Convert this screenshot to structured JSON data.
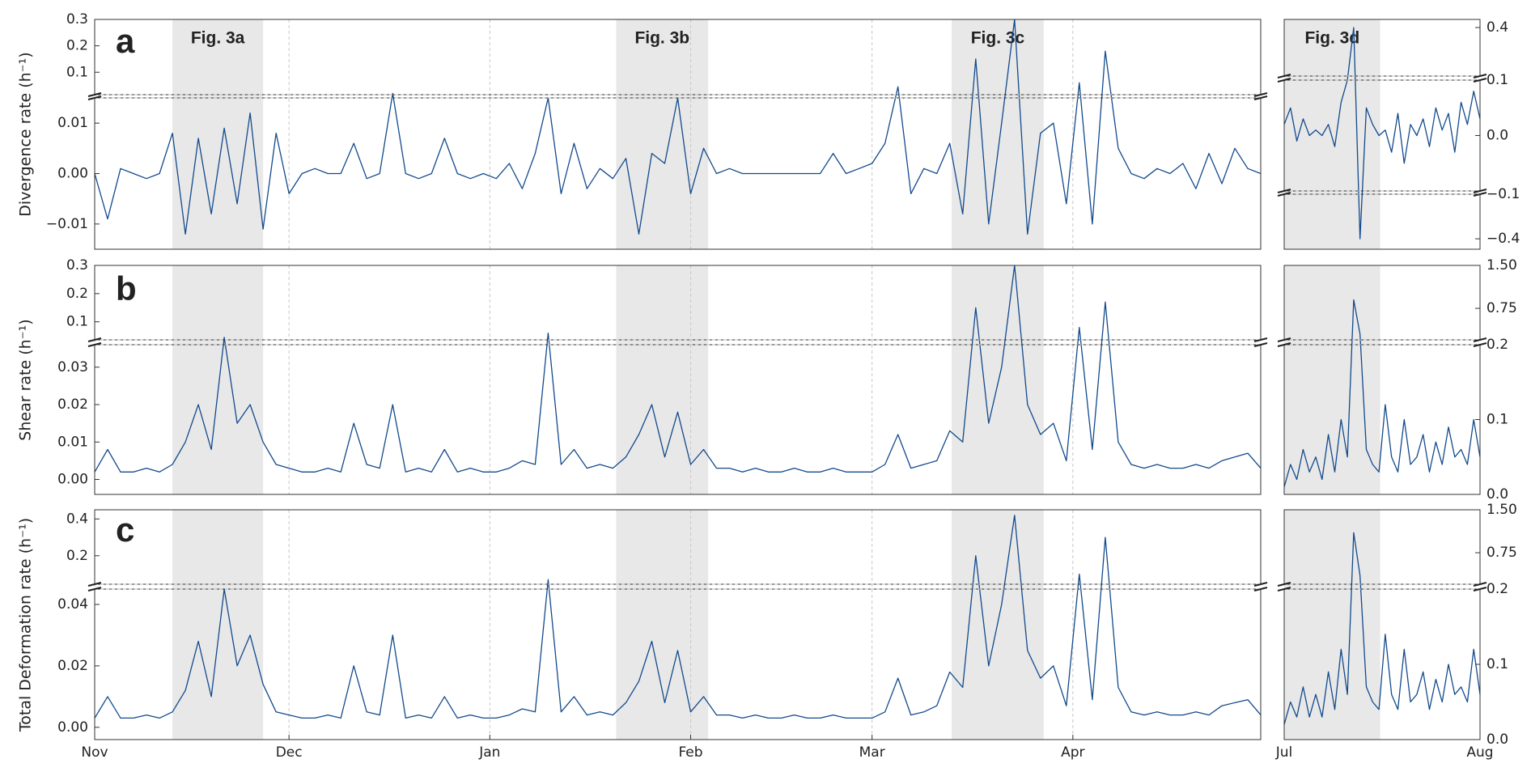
{
  "chart_data": [
    {
      "type": "line",
      "panel_label": "a",
      "ylabel": "Divergence rate (h⁻¹)",
      "color": "#124a8c",
      "xlim": [
        0,
        180
      ],
      "xgrid": [
        0,
        30,
        61,
        92,
        120,
        151
      ],
      "highlights": [
        {
          "label": "Fig. 3a",
          "range": [
            12,
            26
          ]
        },
        {
          "label": "Fig. 3b",
          "range": [
            80.5,
            94.7
          ]
        },
        {
          "label": "Fig. 3c",
          "range": [
            132.3,
            146.5
          ]
        }
      ],
      "segments": [
        {
          "ylim": [
            -0.015,
            0.015
          ],
          "yticks": [
            {
              "value": -0.01,
              "label": "−0.01"
            },
            {
              "value": 0,
              "label": "0.00"
            },
            0.01
          ]
        },
        {
          "ylim": [
            0.015,
            0.3
          ],
          "yticks": [
            0.1,
            0.2,
            0.3
          ]
        }
      ],
      "x": [
        0,
        2,
        4,
        6,
        8,
        10,
        12,
        14,
        16,
        18,
        20,
        22,
        24,
        26,
        28,
        30,
        32,
        34,
        36,
        38,
        40,
        42,
        44,
        46,
        48,
        50,
        52,
        54,
        56,
        58,
        60,
        62,
        64,
        66,
        68,
        70,
        72,
        74,
        76,
        78,
        80,
        82,
        84,
        86,
        88,
        90,
        92,
        94,
        96,
        98,
        100,
        102,
        104,
        106,
        108,
        110,
        112,
        114,
        116,
        118,
        120,
        122,
        124,
        126,
        128,
        130,
        132,
        134,
        136,
        138,
        140,
        142,
        144,
        146,
        148,
        150,
        152,
        154,
        156,
        158,
        160,
        162,
        164,
        166,
        168,
        170,
        172,
        174,
        176,
        178,
        180
      ],
      "values": [
        0,
        -0.009,
        0.001,
        0,
        -0.001,
        0,
        0.008,
        -0.012,
        0.007,
        -0.008,
        0.009,
        -0.006,
        0.012,
        -0.011,
        0.008,
        -0.004,
        0,
        0.001,
        0,
        0,
        0.006,
        -0.001,
        0,
        0.02,
        0,
        -0.001,
        0,
        0.007,
        0,
        -0.001,
        0,
        -0.001,
        0.002,
        -0.003,
        0.004,
        0.015,
        -0.004,
        0.006,
        -0.003,
        0.001,
        -0.001,
        0.003,
        -0.012,
        0.004,
        0.002,
        0.015,
        -0.004,
        0.005,
        0,
        0.001,
        0,
        0,
        0,
        0,
        0,
        0,
        0,
        0.004,
        0,
        0.001,
        0.002,
        0.006,
        0.045,
        -0.004,
        0.001,
        0,
        0.006,
        -0.008,
        0.15,
        -0.01,
        0.01,
        0.3,
        -0.012,
        0.008,
        0.01,
        -0.006,
        0.06,
        -0.01,
        0.18,
        0.005,
        0,
        -0.001,
        0.001,
        0,
        0.002,
        -0.003,
        0.004,
        -0.002,
        0.005,
        0.001,
        0
      ]
    },
    {
      "type": "line",
      "panel_label": "b",
      "ylabel": "Shear rate (h⁻¹)",
      "color": "#124a8c",
      "xlim": [
        0,
        180
      ],
      "xgrid": [
        0,
        30,
        61,
        92,
        120,
        151
      ],
      "segments": [
        {
          "ylim": [
            -0.004,
            0.036
          ],
          "yticks": [
            {
              "value": 0,
              "label": "0.00"
            },
            0.01,
            0.02,
            0.03
          ]
        },
        {
          "ylim": [
            0.036,
            0.3
          ],
          "yticks": [
            0.1,
            0.2,
            0.3
          ]
        }
      ],
      "x": [
        0,
        2,
        4,
        6,
        8,
        10,
        12,
        14,
        16,
        18,
        20,
        22,
        24,
        26,
        28,
        30,
        32,
        34,
        36,
        38,
        40,
        42,
        44,
        46,
        48,
        50,
        52,
        54,
        56,
        58,
        60,
        62,
        64,
        66,
        68,
        70,
        72,
        74,
        76,
        78,
        80,
        82,
        84,
        86,
        88,
        90,
        92,
        94,
        96,
        98,
        100,
        102,
        104,
        106,
        108,
        110,
        112,
        114,
        116,
        118,
        120,
        122,
        124,
        126,
        128,
        130,
        132,
        134,
        136,
        138,
        140,
        142,
        144,
        146,
        148,
        150,
        152,
        154,
        156,
        158,
        160,
        162,
        164,
        166,
        168,
        170,
        172,
        174,
        176,
        178,
        180
      ],
      "values": [
        0.002,
        0.008,
        0.002,
        0.002,
        0.003,
        0.002,
        0.004,
        0.01,
        0.02,
        0.008,
        0.045,
        0.015,
        0.02,
        0.01,
        0.004,
        0.003,
        0.002,
        0.002,
        0.003,
        0.002,
        0.015,
        0.004,
        0.003,
        0.02,
        0.002,
        0.003,
        0.002,
        0.008,
        0.002,
        0.003,
        0.002,
        0.002,
        0.003,
        0.005,
        0.004,
        0.06,
        0.004,
        0.008,
        0.003,
        0.004,
        0.003,
        0.006,
        0.012,
        0.02,
        0.006,
        0.018,
        0.004,
        0.008,
        0.003,
        0.003,
        0.002,
        0.003,
        0.002,
        0.002,
        0.003,
        0.002,
        0.002,
        0.003,
        0.002,
        0.002,
        0.002,
        0.004,
        0.012,
        0.003,
        0.004,
        0.005,
        0.013,
        0.01,
        0.15,
        0.015,
        0.03,
        0.3,
        0.02,
        0.012,
        0.015,
        0.005,
        0.08,
        0.008,
        0.17,
        0.01,
        0.004,
        0.003,
        0.004,
        0.003,
        0.003,
        0.004,
        0.003,
        0.005,
        0.006,
        0.007,
        0.003
      ]
    },
    {
      "type": "line",
      "panel_label": "c",
      "ylabel": "Total Deformation rate (h⁻¹)",
      "color": "#124a8c",
      "xlim": [
        0,
        180
      ],
      "xticks": [
        {
          "value": 0,
          "label": "Nov"
        },
        {
          "value": 30,
          "label": "Dec"
        },
        {
          "value": 61,
          "label": "Jan"
        },
        {
          "value": 92,
          "label": "Feb"
        },
        {
          "value": 120,
          "label": "Mar"
        },
        {
          "value": 151,
          "label": "Apr"
        }
      ],
      "segments": [
        {
          "ylim": [
            -0.004,
            0.045
          ],
          "yticks": [
            {
              "value": 0,
              "label": "0.00"
            },
            0.02,
            0.04
          ]
        },
        {
          "ylim": [
            0.045,
            0.45
          ],
          "yticks": [
            0.2,
            0.4
          ]
        }
      ],
      "x": [
        0,
        2,
        4,
        6,
        8,
        10,
        12,
        14,
        16,
        18,
        20,
        22,
        24,
        26,
        28,
        30,
        32,
        34,
        36,
        38,
        40,
        42,
        44,
        46,
        48,
        50,
        52,
        54,
        56,
        58,
        60,
        62,
        64,
        66,
        68,
        70,
        72,
        74,
        76,
        78,
        80,
        82,
        84,
        86,
        88,
        90,
        92,
        94,
        96,
        98,
        100,
        102,
        104,
        106,
        108,
        110,
        112,
        114,
        116,
        118,
        120,
        122,
        124,
        126,
        128,
        130,
        132,
        134,
        136,
        138,
        140,
        142,
        144,
        146,
        148,
        150,
        152,
        154,
        156,
        158,
        160,
        162,
        164,
        166,
        168,
        170,
        172,
        174,
        176,
        178,
        180
      ],
      "values": [
        0.003,
        0.01,
        0.003,
        0.003,
        0.004,
        0.003,
        0.005,
        0.012,
        0.028,
        0.01,
        0.045,
        0.02,
        0.03,
        0.014,
        0.005,
        0.004,
        0.003,
        0.003,
        0.004,
        0.003,
        0.02,
        0.005,
        0.004,
        0.03,
        0.003,
        0.004,
        0.003,
        0.01,
        0.003,
        0.004,
        0.003,
        0.003,
        0.004,
        0.006,
        0.005,
        0.07,
        0.005,
        0.01,
        0.004,
        0.005,
        0.004,
        0.008,
        0.015,
        0.028,
        0.008,
        0.025,
        0.005,
        0.01,
        0.004,
        0.004,
        0.003,
        0.004,
        0.003,
        0.003,
        0.004,
        0.003,
        0.003,
        0.004,
        0.003,
        0.003,
        0.003,
        0.005,
        0.016,
        0.004,
        0.005,
        0.007,
        0.018,
        0.013,
        0.2,
        0.02,
        0.04,
        0.42,
        0.025,
        0.016,
        0.02,
        0.007,
        0.1,
        0.009,
        0.3,
        0.013,
        0.005,
        0.004,
        0.005,
        0.004,
        0.004,
        0.005,
        0.004,
        0.007,
        0.008,
        0.009,
        0.004
      ]
    },
    {
      "type": "line",
      "color": "#124a8c",
      "xlim": [
        0,
        31
      ],
      "highlights": [
        {
          "label": "Fig. 3d",
          "range": [
            0,
            15.2
          ]
        }
      ],
      "segments": [
        {
          "ylim": [
            -0.47,
            -0.1
          ],
          "yticks": [
            {
              "value": -0.4,
              "label": "−0.4"
            }
          ]
        },
        {
          "ylim": [
            -0.1,
            0.1
          ],
          "yticks": [
            {
              "value": -0.1,
              "label": "−0.1"
            },
            {
              "value": 0,
              "label": "0.0"
            },
            0.1
          ]
        },
        {
          "ylim": [
            0.1,
            0.45
          ],
          "yticks": [
            0.4
          ]
        }
      ],
      "x": [
        0,
        1,
        2,
        3,
        4,
        5,
        6,
        7,
        8,
        9,
        10,
        11,
        12,
        13,
        14,
        15,
        16,
        17,
        18,
        19,
        20,
        21,
        22,
        23,
        24,
        25,
        26,
        27,
        28,
        29,
        30,
        31
      ],
      "values": [
        0.02,
        0.05,
        -0.01,
        0.03,
        0,
        0.01,
        0,
        0.02,
        -0.02,
        0.06,
        0.1,
        0.4,
        -0.4,
        0.05,
        0.02,
        0,
        0.01,
        -0.03,
        0.04,
        -0.05,
        0.02,
        0,
        0.03,
        -0.02,
        0.05,
        0.01,
        0.04,
        -0.03,
        0.06,
        0.02,
        0.08,
        0.03
      ]
    },
    {
      "type": "line",
      "color": "#124a8c",
      "xlim": [
        0,
        31
      ],
      "segments": [
        {
          "ylim": [
            0,
            0.2
          ],
          "yticks": [
            {
              "value": 0,
              "label": "0.0"
            },
            0.1,
            0.2
          ]
        },
        {
          "ylim": [
            0.2,
            1.5
          ],
          "yticks": [
            0.75,
            {
              "value": 1.5,
              "label": "1.50"
            }
          ]
        }
      ],
      "x": [
        0,
        1,
        2,
        3,
        4,
        5,
        6,
        7,
        8,
        9,
        10,
        11,
        12,
        13,
        14,
        15,
        16,
        17,
        18,
        19,
        20,
        21,
        22,
        23,
        24,
        25,
        26,
        27,
        28,
        29,
        30,
        31
      ],
      "values": [
        0.01,
        0.04,
        0.02,
        0.06,
        0.03,
        0.05,
        0.02,
        0.08,
        0.03,
        0.1,
        0.05,
        0.9,
        0.3,
        0.06,
        0.04,
        0.03,
        0.12,
        0.05,
        0.03,
        0.1,
        0.04,
        0.05,
        0.08,
        0.03,
        0.07,
        0.04,
        0.09,
        0.05,
        0.06,
        0.04,
        0.1,
        0.05
      ]
    },
    {
      "type": "line",
      "color": "#124a8c",
      "xlim": [
        0,
        31
      ],
      "xticks": [
        {
          "value": 0,
          "label": "Jul"
        },
        {
          "value": 31,
          "label": "Aug"
        }
      ],
      "segments": [
        {
          "ylim": [
            0,
            0.2
          ],
          "yticks": [
            {
              "value": 0,
              "label": "0.0"
            },
            0.1,
            0.2
          ]
        },
        {
          "ylim": [
            0.2,
            1.5
          ],
          "yticks": [
            0.75,
            {
              "value": 1.5,
              "label": "1.50"
            }
          ]
        }
      ],
      "x": [
        0,
        1,
        2,
        3,
        4,
        5,
        6,
        7,
        8,
        9,
        10,
        11,
        12,
        13,
        14,
        15,
        16,
        17,
        18,
        19,
        20,
        21,
        22,
        23,
        24,
        25,
        26,
        27,
        28,
        29,
        30,
        31
      ],
      "values": [
        0.02,
        0.05,
        0.03,
        0.07,
        0.03,
        0.06,
        0.03,
        0.09,
        0.04,
        0.12,
        0.06,
        1.1,
        0.35,
        0.07,
        0.05,
        0.04,
        0.14,
        0.06,
        0.04,
        0.12,
        0.05,
        0.06,
        0.09,
        0.04,
        0.08,
        0.05,
        0.1,
        0.06,
        0.07,
        0.05,
        0.12,
        0.06
      ]
    }
  ]
}
